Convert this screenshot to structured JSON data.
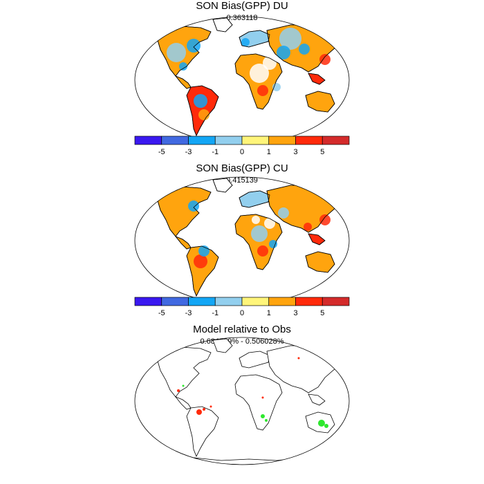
{
  "panels": [
    {
      "title": "SON Bias(GPP) DU",
      "subtitle": "0.363118"
    },
    {
      "title": "SON Bias(GPP) CU",
      "subtitle": "0.415139"
    },
    {
      "title": "Model relative to Obs",
      "subtitle": "0.684299% - 0.506028%"
    }
  ],
  "colorbar": {
    "colors": [
      "#3a18f0",
      "#4169e1",
      "#13a6f5",
      "#92cfee",
      "#fff57a",
      "#ffa40e",
      "#ff2a0a",
      "#d42b2b"
    ],
    "labels": [
      "-5",
      "-3",
      "-1",
      "0",
      "1",
      "3",
      "5"
    ]
  },
  "colors": {
    "land": "#ffa40e",
    "land_wet": "#92cfee",
    "desert": "#ffffff",
    "hot": "#ff2a0a",
    "cold": "#13a6f5",
    "outline": "#000000",
    "green": "#2ee82e",
    "red_marker": "#ff2a0a"
  }
}
